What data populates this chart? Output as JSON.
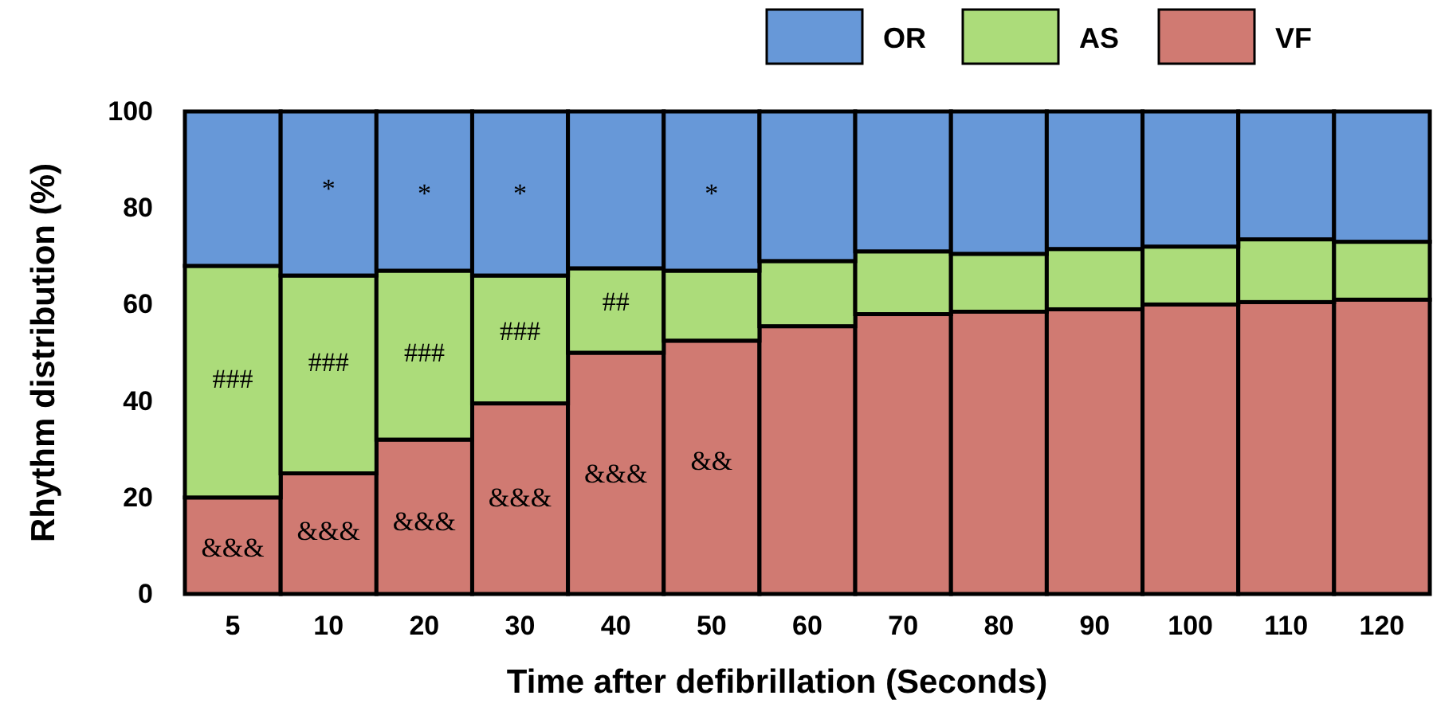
{
  "chart_data": {
    "type": "bar",
    "stacked": true,
    "xlabel": "Time after defibrillation (Seconds)",
    "ylabel": "Rhythm distribution (%)",
    "categories": [
      "5",
      "10",
      "20",
      "30",
      "40",
      "50",
      "60",
      "70",
      "80",
      "90",
      "100",
      "110",
      "120"
    ],
    "series": [
      {
        "name": "VF",
        "color": "#d07a72",
        "values": [
          20,
          25,
          32,
          39.5,
          50,
          52.5,
          55.5,
          58,
          58.5,
          59,
          60,
          60.5,
          61
        ]
      },
      {
        "name": "AS",
        "color": "#acdc7a",
        "values": [
          48,
          41,
          35,
          26.5,
          17.5,
          14.5,
          13.5,
          13,
          12,
          12.5,
          12,
          13,
          12
        ]
      },
      {
        "name": "OR",
        "color": "#6798d8",
        "values": [
          32,
          34,
          33,
          34,
          32.5,
          33,
          31,
          29,
          29.5,
          28.5,
          28,
          26.5,
          27
        ]
      }
    ],
    "ylim": [
      0,
      100
    ],
    "yticks": [
      0,
      20,
      40,
      60,
      80,
      100
    ],
    "legend": "top right",
    "annotations": [
      "*",
      "*",
      "*",
      "*",
      "###",
      "###",
      "###",
      "###",
      "##",
      "&&&",
      "&&&",
      "&&&",
      "&&&",
      "&&&",
      "&&"
    ]
  }
}
